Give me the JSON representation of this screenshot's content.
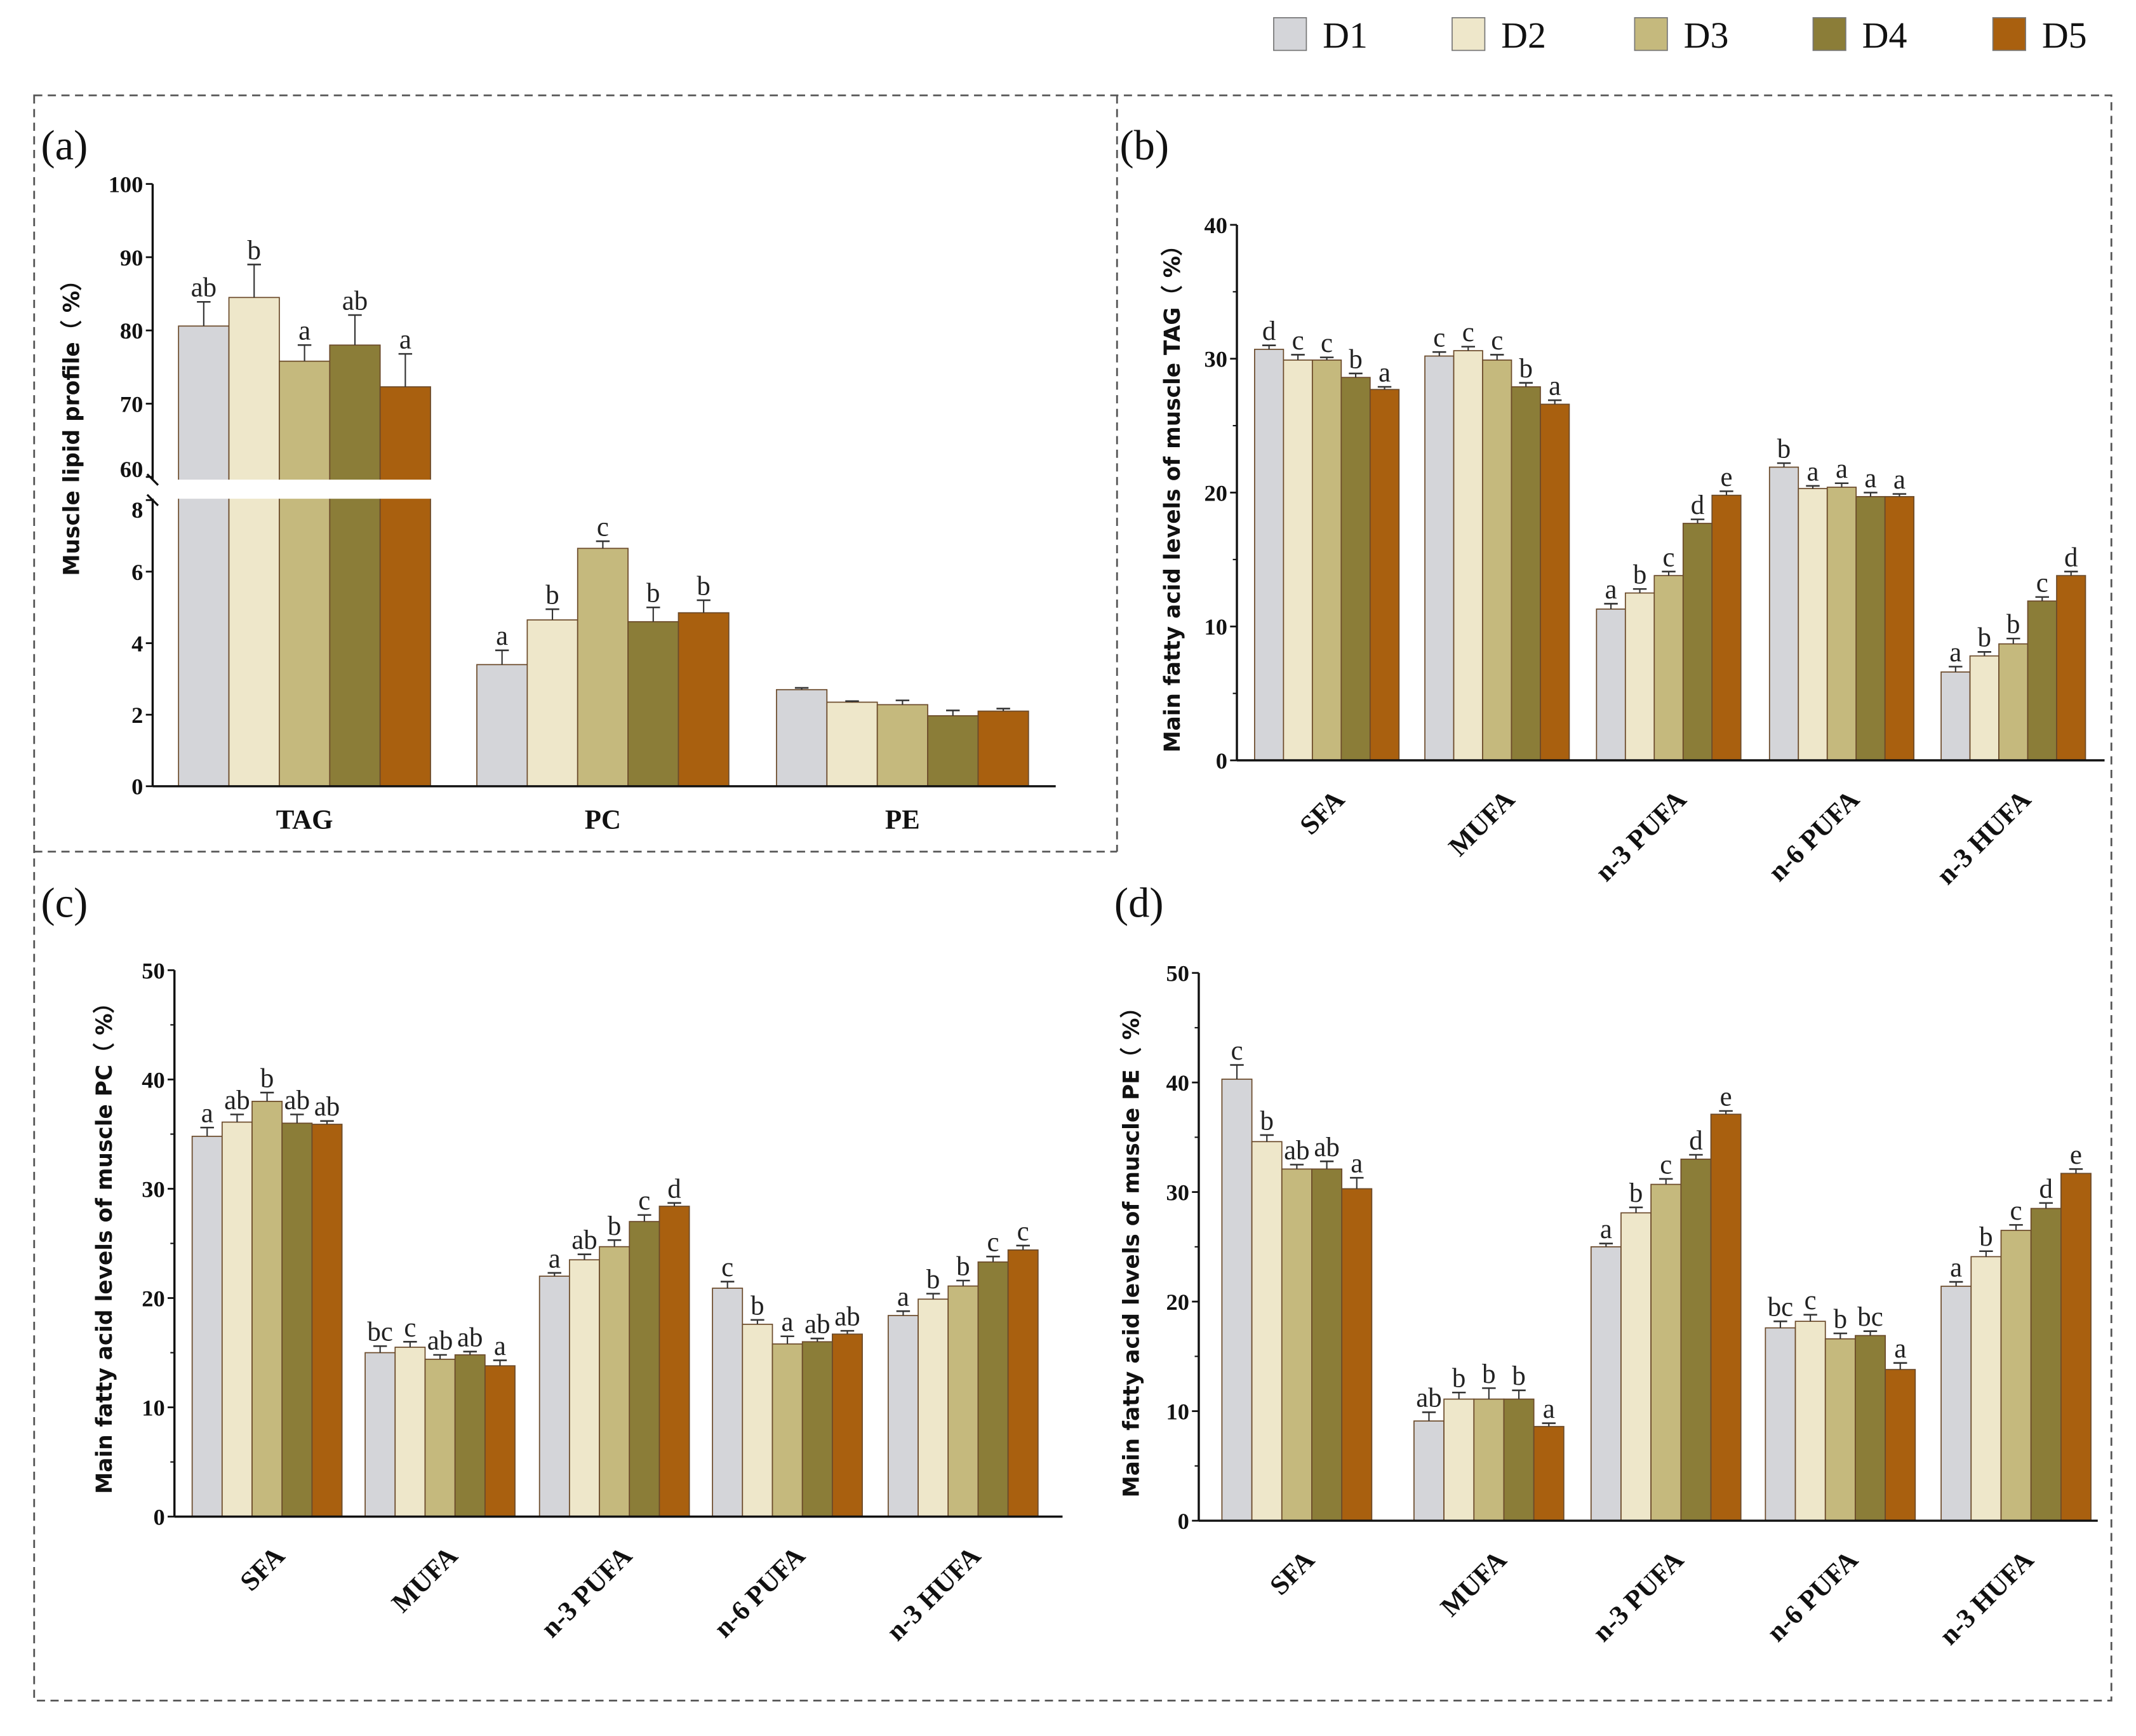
{
  "legend": [
    {
      "label": "D1",
      "color": "#d4d5d9"
    },
    {
      "label": "D2",
      "color": "#eee7ca"
    },
    {
      "label": "D3",
      "color": "#c5b97d"
    },
    {
      "label": "D4",
      "color": "#8b7d38"
    },
    {
      "label": "D5",
      "color": "#a9600f"
    }
  ],
  "chart_data": [
    {
      "panel": "(a)",
      "type": "bar",
      "ylabel": "Muscle lipid profile（ %）",
      "categories": [
        "TAG",
        "PC",
        "PE"
      ],
      "ylim": [
        0,
        100
      ],
      "axis_break": [
        8,
        60
      ],
      "yticks": [
        0,
        2,
        4,
        6,
        8,
        60,
        70,
        80,
        90,
        100
      ],
      "series": [
        {
          "name": "D1",
          "values": [
            80.6,
            3.4,
            2.7
          ],
          "errors": [
            3.3,
            0.4,
            0.05
          ],
          "letters": [
            "ab",
            "a",
            ""
          ]
        },
        {
          "name": "D2",
          "values": [
            84.5,
            4.65,
            2.35
          ],
          "errors": [
            4.5,
            0.3,
            0.03
          ],
          "letters": [
            "b",
            "b",
            ""
          ]
        },
        {
          "name": "D3",
          "values": [
            75.8,
            6.65,
            2.28
          ],
          "errors": [
            2.2,
            0.2,
            0.12
          ],
          "letters": [
            "a",
            "c",
            ""
          ]
        },
        {
          "name": "D4",
          "values": [
            78.0,
            4.6,
            1.97
          ],
          "errors": [
            4.1,
            0.4,
            0.15
          ],
          "letters": [
            "ab",
            "b",
            ""
          ]
        },
        {
          "name": "D5",
          "values": [
            72.3,
            4.85,
            2.1
          ],
          "errors": [
            4.5,
            0.35,
            0.07
          ],
          "letters": [
            "a",
            "b",
            ""
          ]
        }
      ]
    },
    {
      "panel": "(b)",
      "type": "bar",
      "ylabel": "Main fatty acid levels of muscle TAG（ %）",
      "categories": [
        "SFA",
        "MUFA",
        "n-3 PUFA",
        "n-6 PUFA",
        "n-3 HUFA"
      ],
      "ylim": [
        0,
        40
      ],
      "yticks": [
        0,
        10,
        20,
        30,
        40
      ],
      "series": [
        {
          "name": "D1",
          "values": [
            30.7,
            30.2,
            11.3,
            21.9,
            6.6
          ],
          "errors": [
            0.3,
            0.3,
            0.4,
            0.3,
            0.4
          ],
          "letters": [
            "d",
            "c",
            "a",
            "b",
            "a"
          ]
        },
        {
          "name": "D2",
          "values": [
            29.9,
            30.6,
            12.5,
            20.3,
            7.8
          ],
          "errors": [
            0.4,
            0.3,
            0.3,
            0.2,
            0.3
          ],
          "letters": [
            "c",
            "c",
            "b",
            "a",
            "b"
          ]
        },
        {
          "name": "D3",
          "values": [
            29.9,
            29.9,
            13.8,
            20.4,
            8.7
          ],
          "errors": [
            0.2,
            0.4,
            0.3,
            0.3,
            0.4
          ],
          "letters": [
            "c",
            "c",
            "c",
            "a",
            "b"
          ]
        },
        {
          "name": "D4",
          "values": [
            28.6,
            27.9,
            17.7,
            19.7,
            11.9
          ],
          "errors": [
            0.3,
            0.3,
            0.3,
            0.3,
            0.3
          ],
          "letters": [
            "b",
            "b",
            "d",
            "a",
            "c"
          ]
        },
        {
          "name": "D5",
          "values": [
            27.7,
            26.6,
            19.8,
            19.7,
            13.8
          ],
          "errors": [
            0.2,
            0.3,
            0.3,
            0.2,
            0.3
          ],
          "letters": [
            "a",
            "a",
            "e",
            "a",
            "d"
          ]
        }
      ]
    },
    {
      "panel": "(c)",
      "type": "bar",
      "ylabel": "Main fatty acid levels of muscle PC（ %）",
      "categories": [
        "SFA",
        "MUFA",
        "n-3 PUFA",
        "n-6 PUFA",
        "n-3 HUFA"
      ],
      "ylim": [
        0,
        50
      ],
      "yticks": [
        0,
        10,
        20,
        30,
        40,
        50
      ],
      "series": [
        {
          "name": "D1",
          "values": [
            34.8,
            15.0,
            22.0,
            20.9,
            18.4
          ],
          "errors": [
            0.8,
            0.6,
            0.3,
            0.6,
            0.4
          ],
          "letters": [
            "a",
            "bc",
            "a",
            "c",
            "a"
          ]
        },
        {
          "name": "D2",
          "values": [
            36.1,
            15.5,
            23.5,
            17.6,
            19.9
          ],
          "errors": [
            0.7,
            0.5,
            0.5,
            0.4,
            0.5
          ],
          "letters": [
            "ab",
            "c",
            "ab",
            "b",
            "b"
          ]
        },
        {
          "name": "D3",
          "values": [
            38.0,
            14.4,
            24.7,
            15.8,
            21.1
          ],
          "errors": [
            0.8,
            0.4,
            0.6,
            0.7,
            0.5
          ],
          "letters": [
            "b",
            "ab",
            "b",
            "a",
            "b"
          ]
        },
        {
          "name": "D4",
          "values": [
            36.0,
            14.8,
            27.0,
            16.0,
            23.3
          ],
          "errors": [
            0.8,
            0.3,
            0.6,
            0.3,
            0.5
          ],
          "letters": [
            "ab",
            "ab",
            "c",
            "ab",
            "c"
          ]
        },
        {
          "name": "D5",
          "values": [
            35.9,
            13.8,
            28.4,
            16.7,
            24.4
          ],
          "errors": [
            0.3,
            0.5,
            0.3,
            0.3,
            0.4
          ],
          "letters": [
            "ab",
            "a",
            "d",
            "ab",
            "c"
          ]
        }
      ]
    },
    {
      "panel": "(d)",
      "type": "bar",
      "ylabel": "Main fatty acid levels of muscle PE（ %）",
      "categories": [
        "SFA",
        "MUFA",
        "n-3 PUFA",
        "n-6 PUFA",
        "n-3 HUFA"
      ],
      "ylim": [
        0,
        50
      ],
      "yticks": [
        0,
        10,
        20,
        30,
        40,
        50
      ],
      "series": [
        {
          "name": "D1",
          "values": [
            40.3,
            9.1,
            25.0,
            17.6,
            21.4
          ],
          "errors": [
            1.3,
            0.8,
            0.3,
            0.6,
            0.4
          ],
          "letters": [
            "c",
            "ab",
            "a",
            "bc",
            "a"
          ]
        },
        {
          "name": "D2",
          "values": [
            34.6,
            11.1,
            28.1,
            18.2,
            24.1
          ],
          "errors": [
            0.6,
            0.6,
            0.5,
            0.6,
            0.5
          ],
          "letters": [
            "b",
            "b",
            "b",
            "c",
            "b"
          ]
        },
        {
          "name": "D3",
          "values": [
            32.1,
            11.1,
            30.7,
            16.6,
            26.5
          ],
          "errors": [
            0.4,
            1.0,
            0.5,
            0.5,
            0.5
          ],
          "letters": [
            "ab",
            "b",
            "c",
            "b",
            "c"
          ]
        },
        {
          "name": "D4",
          "values": [
            32.1,
            11.1,
            33.0,
            16.9,
            28.5
          ],
          "errors": [
            0.7,
            0.8,
            0.4,
            0.4,
            0.5
          ],
          "letters": [
            "ab",
            "b",
            "d",
            "bc",
            "d"
          ]
        },
        {
          "name": "D5",
          "values": [
            30.3,
            8.6,
            37.1,
            13.8,
            31.7
          ],
          "errors": [
            1.0,
            0.3,
            0.3,
            0.6,
            0.4
          ],
          "letters": [
            "a",
            "a",
            "e",
            "a",
            "e"
          ]
        }
      ]
    }
  ]
}
